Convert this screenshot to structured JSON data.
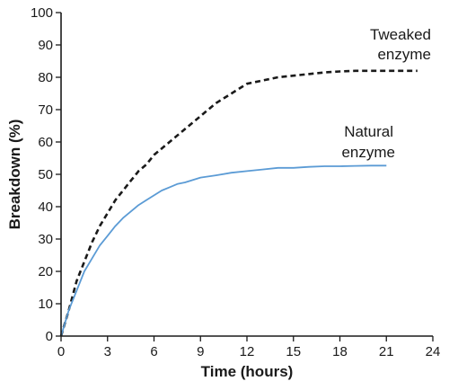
{
  "chart_data": {
    "type": "line",
    "title": "",
    "xlabel": "Time (hours)",
    "ylabel": "Breakdown (%)",
    "xlim": [
      0,
      24
    ],
    "ylim": [
      0,
      100
    ],
    "xticks": [
      0,
      3,
      6,
      9,
      12,
      15,
      18,
      21,
      24
    ],
    "yticks": [
      0,
      10,
      20,
      30,
      40,
      50,
      60,
      70,
      80,
      90,
      100
    ],
    "grid": false,
    "legend": "none",
    "series": [
      {
        "name": "Tweaked enzyme",
        "label_lines": [
          "Tweaked",
          "enzyme"
        ],
        "color": "#1a1a1a",
        "style": "dashed",
        "x": [
          0,
          0.5,
          1,
          1.5,
          2,
          2.5,
          3,
          3.5,
          4,
          4.5,
          5,
          5.5,
          6,
          7,
          8,
          9,
          10,
          11,
          12,
          13,
          14,
          15,
          16,
          17,
          18,
          19,
          20,
          21,
          22,
          23
        ],
        "y": [
          0,
          8,
          17,
          23,
          29,
          34,
          38,
          42,
          45,
          48,
          51,
          53,
          56,
          60,
          64,
          68,
          72,
          75,
          78,
          79,
          80,
          80.5,
          81,
          81.5,
          81.8,
          82,
          82,
          82,
          82,
          82
        ]
      },
      {
        "name": "Natural enzyme",
        "label_lines": [
          "Natural",
          "enzyme"
        ],
        "color": "#5b9bd5",
        "style": "solid",
        "x": [
          0,
          0.5,
          1,
          1.5,
          2,
          2.5,
          3,
          3.5,
          4,
          4.5,
          5,
          5.5,
          6,
          6.5,
          7,
          7.5,
          8,
          9,
          10,
          11,
          12,
          13,
          14,
          15,
          16,
          17,
          18,
          19,
          20,
          21
        ],
        "y": [
          0,
          8,
          14,
          20,
          24,
          28,
          31,
          34,
          36.5,
          38.5,
          40.5,
          42,
          43.5,
          45,
          46,
          47,
          47.5,
          49,
          49.7,
          50.5,
          51,
          51.5,
          52,
          52,
          52.3,
          52.5,
          52.5,
          52.6,
          52.7,
          52.7
        ]
      }
    ]
  }
}
